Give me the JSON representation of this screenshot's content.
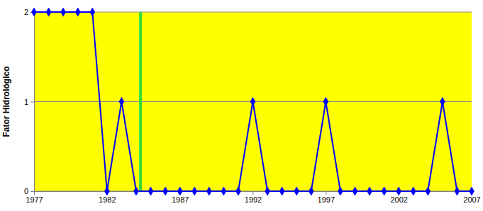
{
  "chart_data": {
    "type": "line",
    "y_label": "Fator Hidrológico",
    "x": [
      1977,
      1978,
      1979,
      1980,
      1981,
      1982,
      1983,
      1984,
      1985,
      1986,
      1987,
      1988,
      1989,
      1990,
      1991,
      1992,
      1993,
      1994,
      1995,
      1996,
      1997,
      1998,
      1999,
      2000,
      2001,
      2002,
      2003,
      2004,
      2005,
      2006,
      2007
    ],
    "values": [
      2,
      2,
      2,
      2,
      2,
      0,
      1,
      0,
      0,
      0,
      0,
      0,
      0,
      0,
      0,
      1,
      0,
      0,
      0,
      0,
      1,
      0,
      0,
      0,
      0,
      0,
      0,
      0,
      1,
      0,
      0
    ],
    "color": "#0000ff",
    "marker": "diamond",
    "xlim": [
      1977,
      2007
    ],
    "xticks": [
      1977,
      1982,
      1987,
      1992,
      1997,
      2002,
      2007
    ],
    "ylim": [
      0,
      2
    ],
    "yticks": [
      0,
      1,
      2
    ],
    "grid": true,
    "reference_line": {
      "x": 1984.3,
      "color": "#33dd33"
    }
  }
}
